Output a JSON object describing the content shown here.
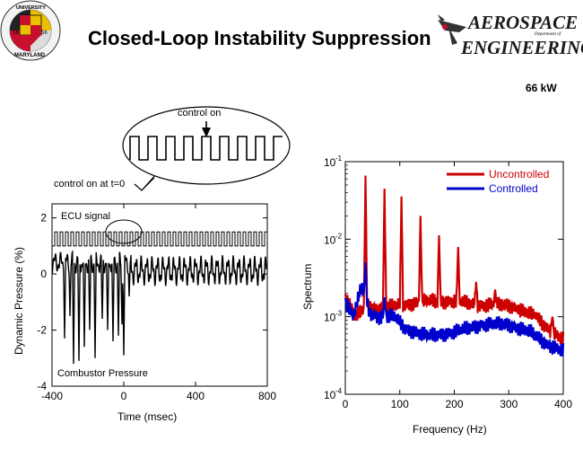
{
  "header": {
    "title": "Closed-Loop Instability Suppression",
    "power": "66 kW",
    "logo_left": {
      "top_text": "UNIVERSITY",
      "bottom_text": "MARYLAND",
      "year_left": "18",
      "year_right": "56"
    },
    "logo_right": {
      "line1": "AEROSPACE",
      "line1b": "Department of",
      "line2": "ENGINEERING"
    }
  },
  "colors": {
    "uncontrolled": "#cc0000",
    "controlled": "#0000cc"
  },
  "left_chart": {
    "ylabel": "Dynamic Pressure (%)",
    "xlabel": "Time (msec)",
    "xticks": [
      "-400",
      "0",
      "400",
      "800"
    ],
    "yticks": [
      "2",
      "0",
      "-2",
      "-4"
    ],
    "ann_ecu": "ECU signal",
    "ann_combustor": "Combustor Pressure",
    "ann_control_on_t0": "control on at t=0",
    "ann_control_on": "control on"
  },
  "right_chart": {
    "ylabel": "Spectrum",
    "xlabel": "Frequency (Hz)",
    "xticks": [
      "0",
      "100",
      "200",
      "300",
      "400"
    ],
    "ytick_base": [
      "10",
      "10",
      "10",
      "10"
    ],
    "ytick_exp": [
      "-1",
      "-2",
      "-3",
      "-4"
    ],
    "legend_uncontrolled": "Uncontrolled",
    "legend_controlled": "Controlled"
  },
  "chart_data": [
    {
      "type": "line",
      "xlim": [
        -400,
        800
      ],
      "ylim": [
        -4,
        2.5
      ],
      "series": [
        {
          "name": "ECU signal",
          "kind": "square_wave",
          "low": 1.0,
          "high": 1.5,
          "period_ms": 30
        },
        {
          "name": "Combustor Pressure",
          "kind": "oscillation",
          "center": 0.4,
          "spike_times_ms": [
            -330,
            -300,
            -280,
            -250,
            -220,
            -190,
            -160,
            -120,
            -90,
            -60,
            -30,
            -10,
            0,
            30
          ],
          "spike_minima": [
            -2.3,
            -1.5,
            -3.2,
            -3.1,
            -2.6,
            -2.0,
            -3.0,
            -1.6,
            -2.0,
            -2.4,
            -2.2,
            -1.8,
            -2.9,
            -0.8
          ],
          "post_control_amplitude_pct": 0.35
        }
      ]
    },
    {
      "type": "line",
      "xlim": [
        0,
        400
      ],
      "ylim_log10": [
        -4,
        -1
      ],
      "series": [
        {
          "name": "Uncontrolled",
          "baseline_log10": [
            [
              0,
              -2.75
            ],
            [
              20,
              -3.0
            ],
            [
              40,
              -2.85
            ],
            [
              60,
              -2.9
            ],
            [
              100,
              -2.85
            ],
            [
              150,
              -2.8
            ],
            [
              200,
              -2.8
            ],
            [
              250,
              -2.85
            ],
            [
              300,
              -2.85
            ],
            [
              350,
              -3.0
            ],
            [
              380,
              -3.2
            ],
            [
              400,
              -3.3
            ]
          ],
          "peaks": [
            {
              "f": 37,
              "log10": -1.18
            },
            {
              "f": 72,
              "log10": -1.35
            },
            {
              "f": 103,
              "log10": -1.45
            },
            {
              "f": 138,
              "log10": -1.7
            },
            {
              "f": 172,
              "log10": -1.95
            },
            {
              "f": 207,
              "log10": -2.1
            },
            {
              "f": 240,
              "log10": -2.55
            },
            {
              "f": 275,
              "log10": -2.65
            },
            {
              "f": 315,
              "log10": -2.9
            },
            {
              "f": 348,
              "log10": -2.95
            },
            {
              "f": 380,
              "log10": -3.0
            }
          ]
        },
        {
          "name": "Controlled",
          "baseline_log10": [
            [
              0,
              -2.8
            ],
            [
              15,
              -3.0
            ],
            [
              30,
              -2.6
            ],
            [
              45,
              -2.95
            ],
            [
              60,
              -3.0
            ],
            [
              90,
              -3.0
            ],
            [
              110,
              -3.15
            ],
            [
              150,
              -3.25
            ],
            [
              200,
              -3.2
            ],
            [
              250,
              -3.1
            ],
            [
              300,
              -3.1
            ],
            [
              340,
              -3.2
            ],
            [
              370,
              -3.35
            ],
            [
              400,
              -3.45
            ]
          ],
          "peaks": [
            {
              "f": 37,
              "log10": -2.3
            },
            {
              "f": 72,
              "log10": -2.75
            }
          ]
        }
      ]
    }
  ]
}
